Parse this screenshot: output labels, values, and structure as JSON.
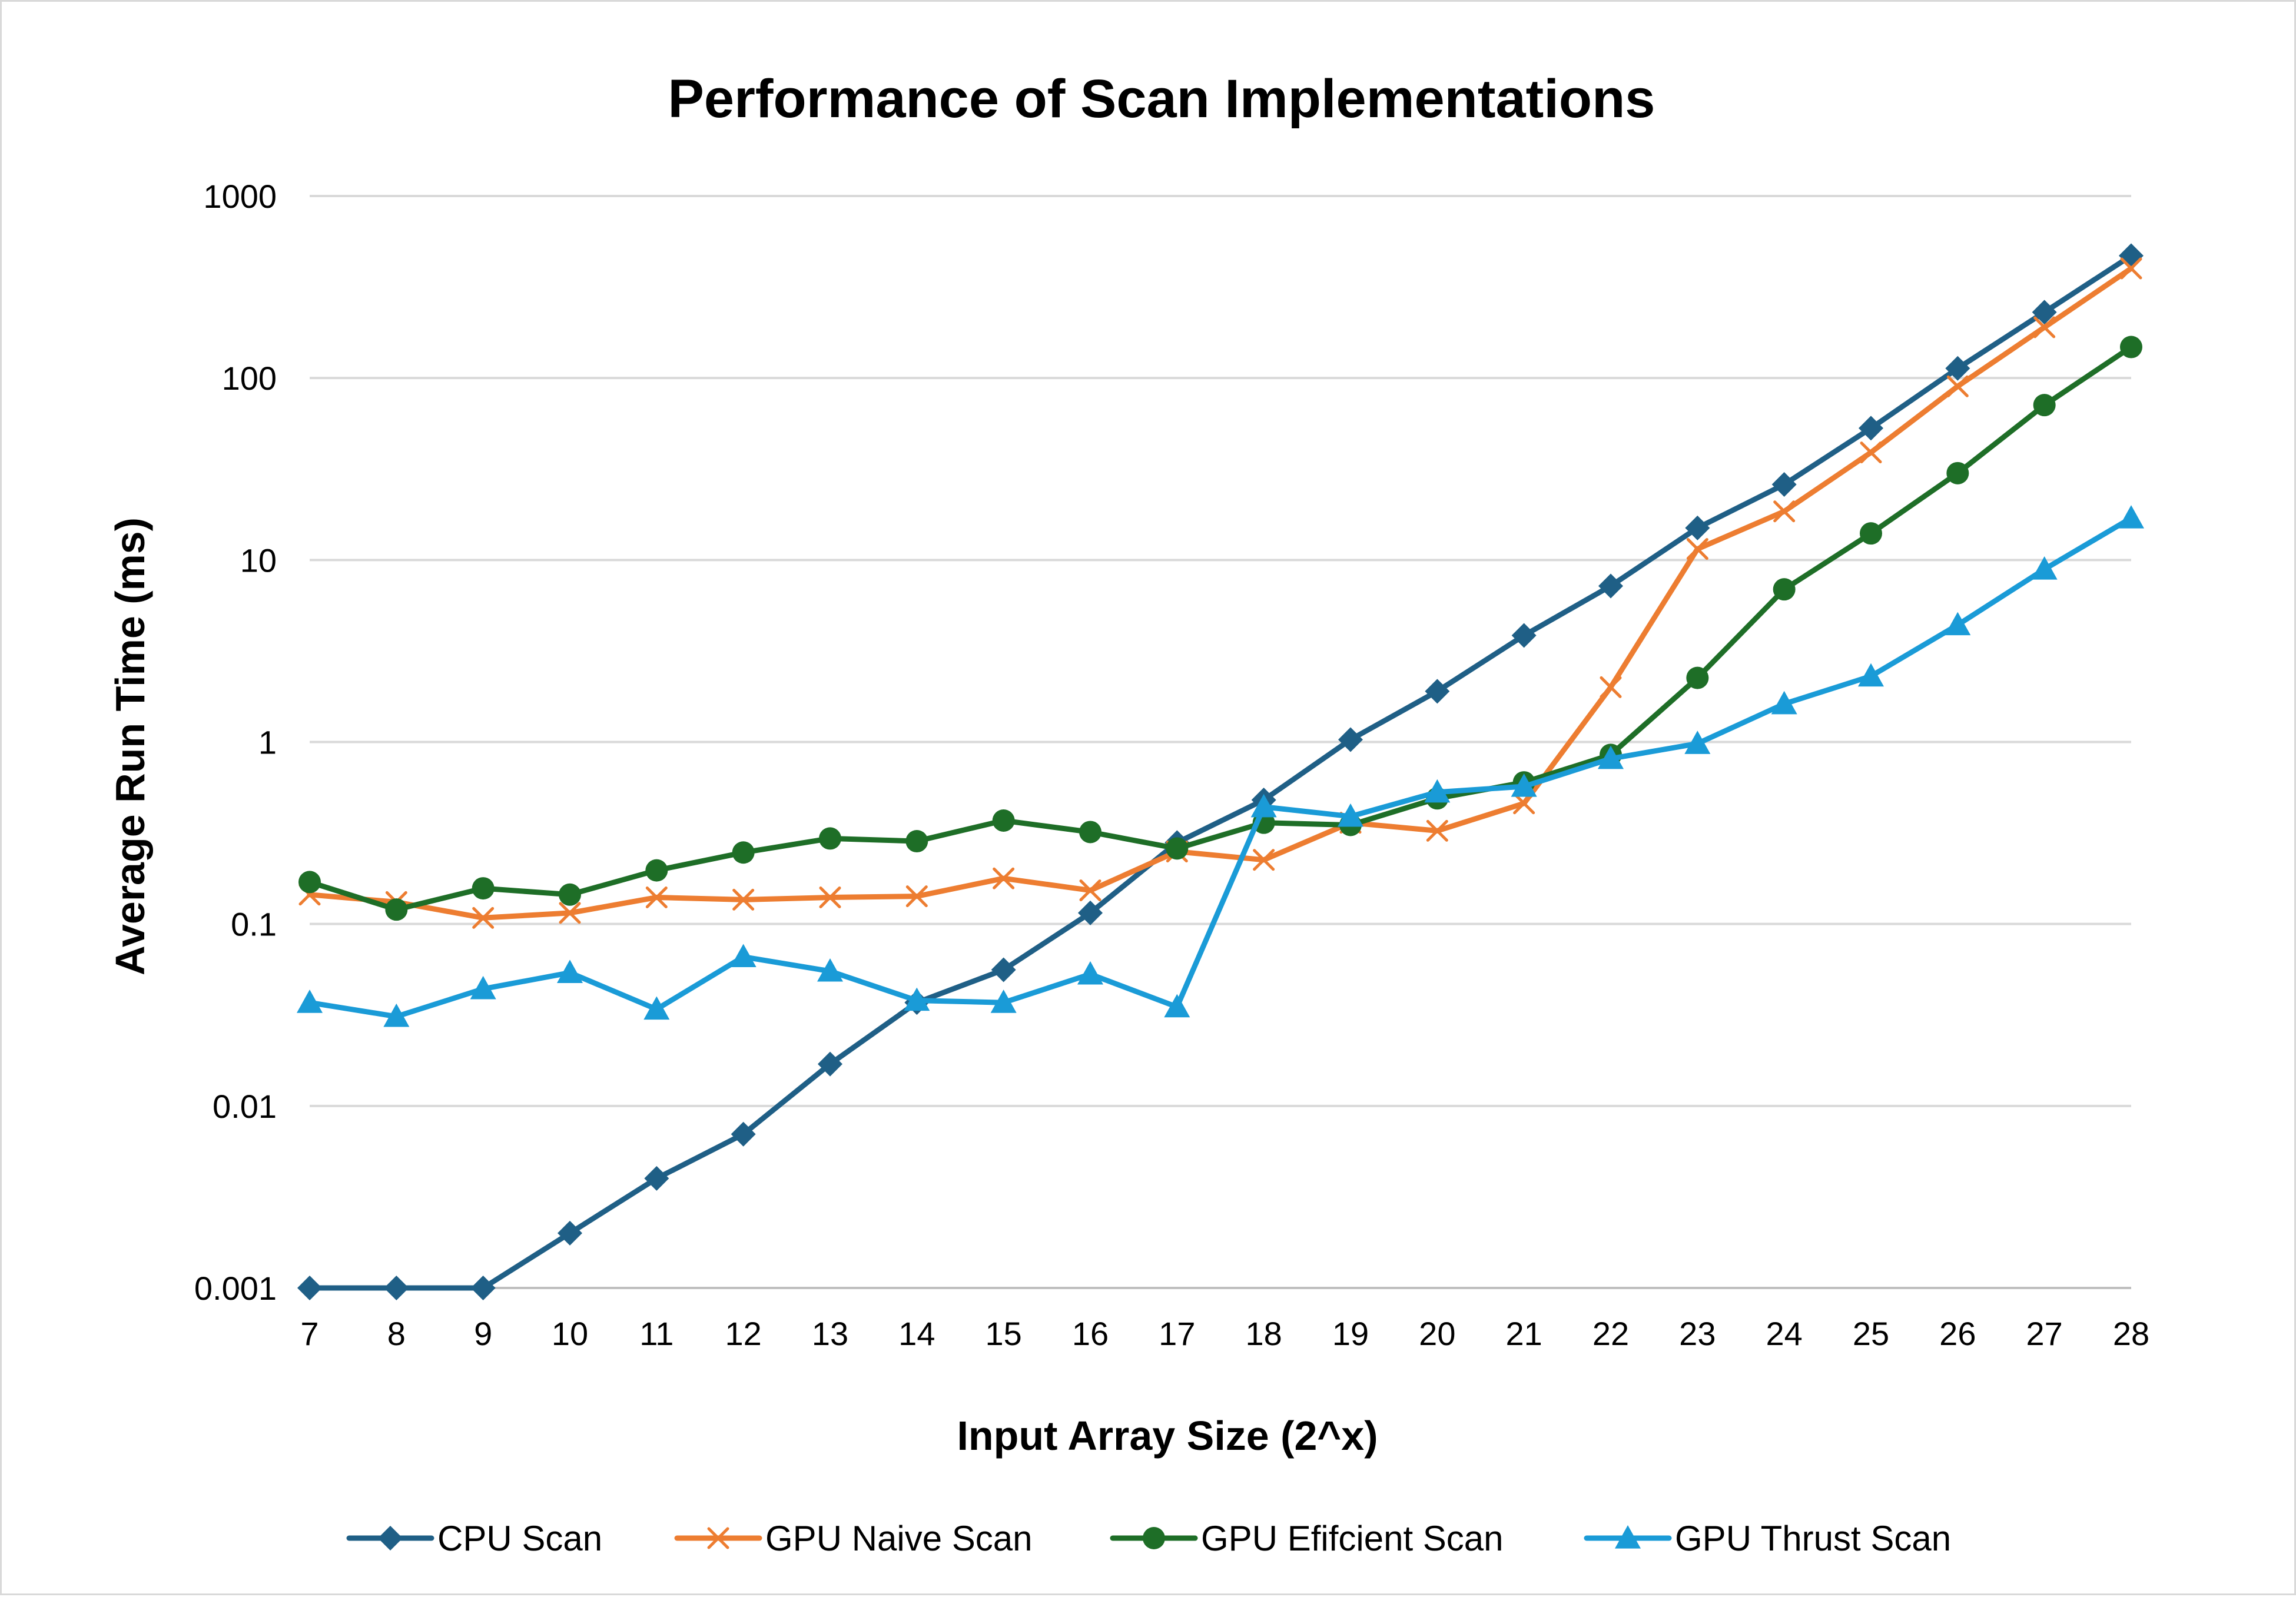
{
  "chart_data": {
    "type": "line",
    "title": "Performance of Scan Implementations",
    "xlabel": "Input Array Size (2^x)",
    "ylabel": "Average Run Time (ms)",
    "y_scale": "log",
    "ylim": [
      0.001,
      1000
    ],
    "y_ticks": [
      0.001,
      0.01,
      0.1,
      1,
      10,
      100,
      1000
    ],
    "y_tick_labels": [
      "0.001",
      "0.01",
      "0.1",
      "1",
      "10",
      "100",
      "1000"
    ],
    "categories": [
      7,
      8,
      9,
      10,
      11,
      12,
      13,
      14,
      15,
      16,
      17,
      18,
      19,
      20,
      21,
      22,
      23,
      24,
      25,
      26,
      27,
      28
    ],
    "grid": true,
    "legend_position": "bottom",
    "series": [
      {
        "name": "CPU Scan",
        "color": "#1f5f86",
        "marker": "diamond",
        "values": [
          0.001,
          0.001,
          0.001,
          0.002,
          0.004,
          0.007,
          0.017,
          0.037,
          0.056,
          0.115,
          0.28,
          0.48,
          1.03,
          1.9,
          3.85,
          7.2,
          15,
          26,
          53,
          113,
          230,
          470
        ]
      },
      {
        "name": "GPU Naive Scan",
        "color": "#ed7d31",
        "marker": "x",
        "values": [
          0.145,
          0.132,
          0.108,
          0.115,
          0.14,
          0.136,
          0.14,
          0.142,
          0.178,
          0.153,
          0.25,
          0.225,
          0.36,
          0.325,
          0.46,
          2.0,
          11.5,
          18.5,
          39,
          90,
          190,
          400
        ]
      },
      {
        "name": "GPU Efifcient Scan",
        "color": "#1e6e27",
        "marker": "circle",
        "values": [
          0.17,
          0.12,
          0.157,
          0.145,
          0.197,
          0.247,
          0.295,
          0.285,
          0.37,
          0.32,
          0.26,
          0.36,
          0.35,
          0.49,
          0.6,
          0.85,
          2.25,
          6.9,
          14,
          30,
          71,
          148
        ]
      },
      {
        "name": "GPU Thrust Scan",
        "color": "#1a9bd7",
        "marker": "triangle",
        "values": [
          0.037,
          0.031,
          0.044,
          0.054,
          0.034,
          0.066,
          0.055,
          0.038,
          0.037,
          0.053,
          0.035,
          0.44,
          0.39,
          0.53,
          0.57,
          0.81,
          0.98,
          1.62,
          2.3,
          4.4,
          8.9,
          17
        ]
      }
    ]
  }
}
